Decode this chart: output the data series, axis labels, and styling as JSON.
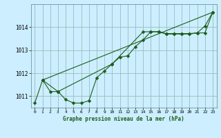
{
  "title": "Graphe pression niveau de la mer (hPa)",
  "bg_color": "#cceeff",
  "grid_color": "#99bbbb",
  "line_color": "#1a5c1a",
  "xlim": [
    -0.5,
    23.5
  ],
  "ylim": [
    1010.5,
    1015.0
  ],
  "yticks": [
    1011,
    1012,
    1013,
    1014
  ],
  "xticks": [
    0,
    1,
    2,
    3,
    4,
    5,
    6,
    7,
    8,
    9,
    10,
    11,
    12,
    13,
    14,
    15,
    16,
    17,
    18,
    19,
    20,
    21,
    22,
    23
  ],
  "series_main": {
    "x": [
      0,
      1,
      2,
      3,
      4,
      5,
      6,
      7,
      8,
      9,
      10,
      11,
      12,
      13,
      14,
      15,
      16,
      17,
      18,
      19,
      20,
      21,
      22,
      23
    ],
    "y": [
      1010.7,
      1011.7,
      1011.2,
      1011.2,
      1010.85,
      1010.7,
      1010.7,
      1010.8,
      1011.8,
      1012.1,
      1012.4,
      1012.7,
      1012.75,
      1013.15,
      1013.45,
      1013.8,
      1013.8,
      1013.7,
      1013.7,
      1013.7,
      1013.7,
      1013.75,
      1014.05,
      1014.65
    ]
  },
  "series_linear": {
    "x": [
      1,
      23
    ],
    "y": [
      1011.7,
      1014.65
    ]
  },
  "series_third": {
    "x": [
      1,
      3,
      10,
      14,
      15,
      16,
      17,
      18,
      19,
      20,
      21,
      22,
      23
    ],
    "y": [
      1011.7,
      1011.2,
      1012.4,
      1013.8,
      1013.8,
      1013.8,
      1013.72,
      1013.72,
      1013.72,
      1013.72,
      1013.75,
      1013.75,
      1014.65
    ]
  }
}
